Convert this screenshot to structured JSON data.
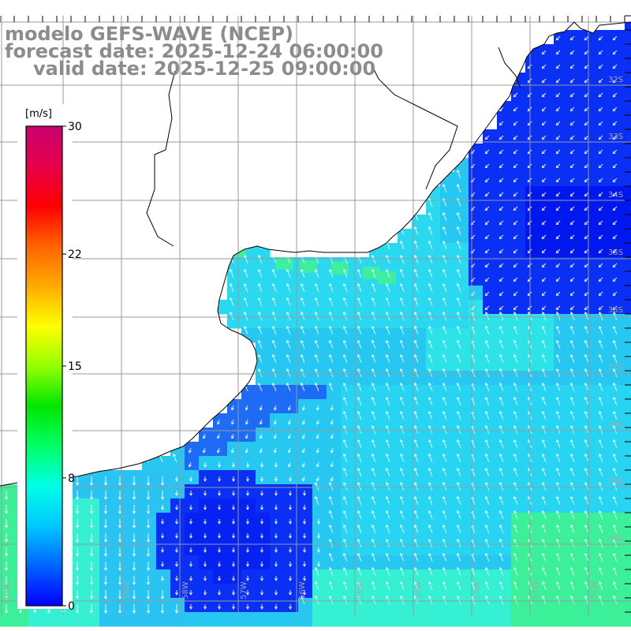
{
  "title": {
    "line1": "modelo GEFS-WAVE (NCEP)",
    "line2": "forecast date: 2025-12-24 06:00:00",
    "line3": "valid date: 2025-12-25 09:00:00"
  },
  "colorbar": {
    "unit": "[m/s]",
    "min": 0,
    "max": 30,
    "ticks": [
      {
        "value": 30,
        "label": "30"
      },
      {
        "value": 22,
        "label": "22"
      },
      {
        "value": 15,
        "label": "15"
      },
      {
        "value": 8,
        "label": "8"
      },
      {
        "value": 0,
        "label": "0"
      }
    ],
    "colors": [
      "#0000ff",
      "#0064ff",
      "#00c8ff",
      "#00ffe6",
      "#00ff64",
      "#00e600",
      "#96ff00",
      "#ffff00",
      "#ffaa00",
      "#ff6400",
      "#ff0000",
      "#e6004b",
      "#c8006e"
    ]
  },
  "axes": {
    "lat_labels": [
      "32S",
      "33S",
      "34S",
      "35S",
      "36S",
      "37S",
      "38S",
      "39S",
      "40S"
    ],
    "lon_labels": [
      "61W",
      "60W",
      "59W",
      "58W",
      "57W",
      "56W",
      "55W",
      "54W",
      "53W",
      "52W",
      "51W"
    ]
  },
  "map": {
    "ocean_colors": {
      "deep_blue": "#0a2ff5",
      "mid_blue": "#1e6cf5",
      "cyan": "#2ad8f0",
      "aqua": "#35f0d2",
      "green": "#3cf09a"
    },
    "land_color": "#ffffff",
    "coast_color": "#000000",
    "grid_color": "#9a9a9a",
    "arrow_color": "#ffffff"
  }
}
